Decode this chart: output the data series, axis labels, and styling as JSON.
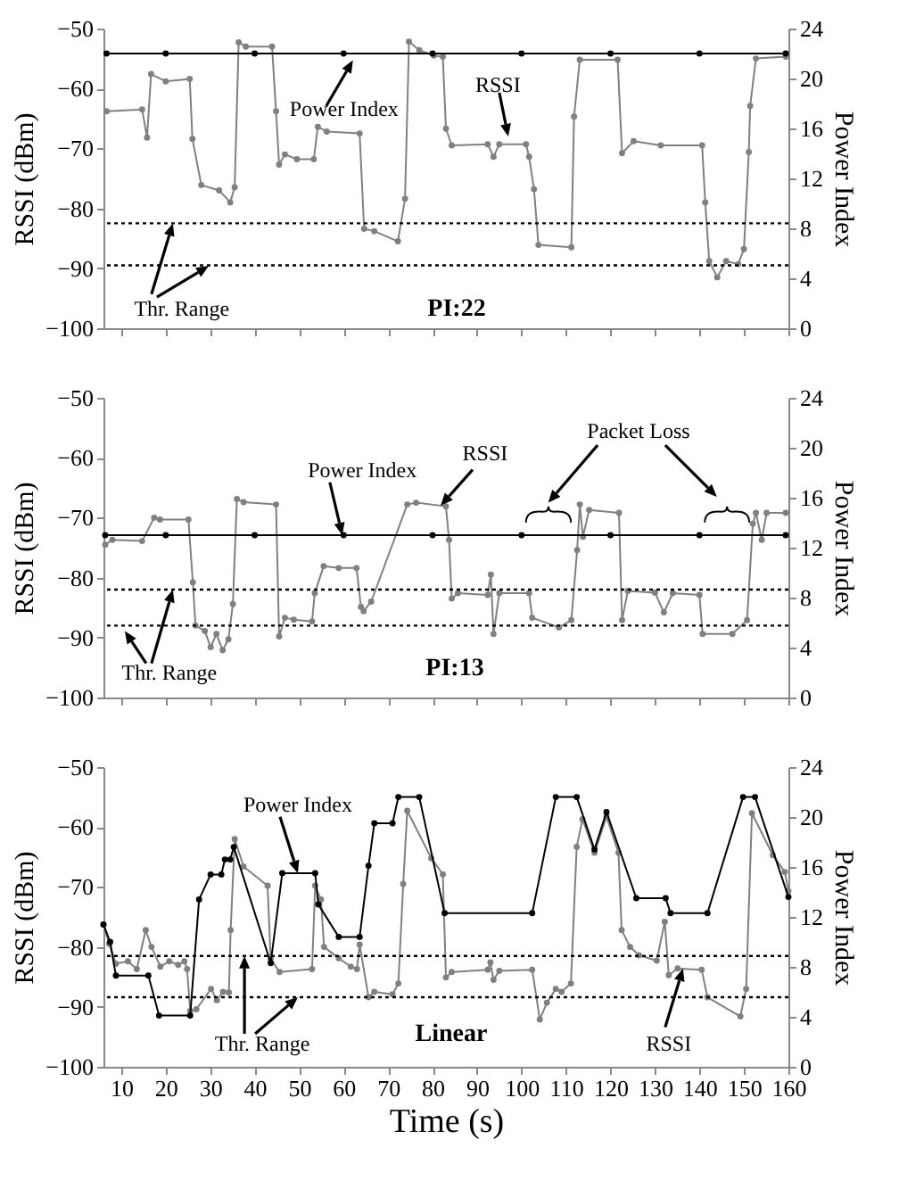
{
  "chart_data": [
    {
      "type": "line",
      "ylabel": "RSSI (dBm)",
      "y2label": "Power Index",
      "xlim": [
        6,
        160
      ],
      "xticks": [
        10,
        20,
        30,
        40,
        50,
        60,
        70,
        80,
        90,
        100,
        110,
        120,
        130,
        140,
        150,
        160
      ],
      "ylim": [
        -100,
        -50
      ],
      "yticks": [
        -100,
        -90,
        -80,
        -70,
        -60,
        -50
      ],
      "y2lim": [
        0,
        24
      ],
      "y2ticks": [
        0,
        4,
        8,
        12,
        16,
        20,
        24
      ],
      "tick_labels": "y",
      "marker": "circle",
      "line_style": "solid",
      "series": [
        {
          "name": null,
          "color": "#808080",
          "x": [
            6.7,
            14.7,
            15.8,
            16.7,
            20,
            25.4,
            26,
            28,
            32,
            34.5,
            35.5,
            36.4,
            38,
            43.9,
            44.8,
            45.5,
            46.8,
            49.5,
            53.3,
            54.2,
            56.2,
            63.6,
            64.6,
            66.9,
            72.2,
            73.8,
            74.7,
            77,
            80.3,
            82.3,
            83,
            84.3,
            92.4,
            93.7,
            95,
            101,
            101.7,
            102.8,
            103.8,
            111.2,
            111.8,
            113.1,
            121.6,
            122.6,
            125.2,
            131.3,
            140.6,
            141.3,
            142.2,
            144,
            146,
            148.7,
            150,
            151.1,
            151.4,
            152.7,
            159.4
          ],
          "values": [
            -63.8,
            -63.5,
            -68.2,
            -57.6,
            -58.8,
            -58.4,
            -68.4,
            -76.1,
            -77,
            -79,
            -76.5,
            -52.3,
            -53,
            -53,
            -63.8,
            -72.7,
            -71,
            -71.8,
            -71.8,
            -66.4,
            -67.2,
            -67.5,
            -83.4,
            -83.8,
            -85.5,
            -78.4,
            -52.2,
            -53.6,
            -54.5,
            -54.7,
            -66.7,
            -69.5,
            -69.3,
            -71.4,
            -69.3,
            -69.3,
            -71.4,
            -76.8,
            -86.1,
            -86.5,
            -64.7,
            -55.2,
            -55.2,
            -70.8,
            -68.8,
            -69.5,
            -69.5,
            -79,
            -88.8,
            -91.5,
            -88.8,
            -89.3,
            -86.8,
            -70.6,
            -62.9,
            -55,
            -54.7
          ]
        },
        {
          "name": null,
          "color": "#000000",
          "axis": "y2",
          "x": [
            6.7,
            20,
            40,
            60,
            80,
            100,
            120,
            140,
            159.4
          ],
          "values": [
            22,
            22,
            22,
            22,
            22,
            22,
            22,
            22,
            22
          ]
        }
      ],
      "ref_lines": [
        {
          "axis": "y",
          "value": -82.5,
          "color": "#000000",
          "line_style": "dotted"
        },
        {
          "axis": "y",
          "value": -89.5,
          "color": "#000000",
          "line_style": "dotted"
        }
      ],
      "annotations": [
        {
          "text": "Power Index",
          "x": 62.1,
          "y": -55.3
        },
        {
          "text": "RSSI",
          "x": 97,
          "y": -68
        },
        {
          "text": "Thr. Range",
          "x": 21.6,
          "y": -82.5
        },
        "PI:22"
      ]
    },
    {
      "type": "line",
      "ylabel": "RSSI (dBm)",
      "y2label": "Power Index",
      "xlim": [
        6,
        160
      ],
      "xticks": [
        10,
        20,
        30,
        40,
        50,
        60,
        70,
        80,
        90,
        100,
        110,
        120,
        130,
        140,
        150,
        160
      ],
      "ylim": [
        -100,
        -50
      ],
      "yticks": [
        -100,
        -90,
        -80,
        -70,
        -60,
        -50
      ],
      "y2lim": [
        0,
        24
      ],
      "y2ticks": [
        0,
        4,
        8,
        12,
        16,
        20,
        24
      ],
      "tick_labels": "y",
      "marker": "circle",
      "line_style": "solid",
      "series": [
        {
          "name": null,
          "color": "#808080",
          "x": [
            6.4,
            8,
            14.7,
            17.4,
            18.7,
            25.1,
            26.1,
            26.7,
            28.8,
            30.1,
            31.4,
            32.8,
            34.1,
            35.1,
            36,
            37.5,
            44.8,
            45.5,
            46.8,
            48.8,
            52.9,
            53.5,
            55.5,
            58.9,
            62.9,
            63.9,
            64.5,
            66.2,
            74.3,
            76.3,
            83,
            83.7,
            84.3,
            85.7,
            92.4,
            93.1,
            93.7,
            95,
            101.7,
            102.4,
            108.4,
            111.2,
            112.5,
            113.1,
            113.8,
            115.2,
            121.9,
            122.6,
            123.9,
            130,
            132,
            134,
            140,
            140.7,
            147.4,
            150.7,
            152,
            152.7,
            154,
            155.1,
            159.4
          ],
          "values": [
            -74.5,
            -73.7,
            -73.9,
            -70,
            -70.3,
            -70.3,
            -80.8,
            -88,
            -88.9,
            -91.6,
            -89.4,
            -92.1,
            -90.3,
            -84.4,
            -66.9,
            -67.4,
            -67.8,
            -89.8,
            -86.7,
            -87,
            -87.3,
            -82.6,
            -78.1,
            -78.4,
            -78.4,
            -84.9,
            -85.6,
            -84,
            -67.8,
            -67.5,
            -68.1,
            -73.7,
            -83.5,
            -82.6,
            -82.9,
            -79.5,
            -89.4,
            -82.6,
            -82.6,
            -86.7,
            -88.3,
            -87.1,
            -75.4,
            -67.8,
            -73.2,
            -68.7,
            -69.2,
            -87.1,
            -82.2,
            -82.5,
            -85.8,
            -82.6,
            -82.9,
            -89.4,
            -89.4,
            -87.1,
            -71,
            -69.2,
            -73.7,
            -69.2,
            -69.2
          ]
        },
        {
          "name": null,
          "color": "#000000",
          "axis": "y2",
          "x": [
            6.4,
            20,
            40,
            60,
            80,
            100,
            120,
            140,
            159.4
          ],
          "values": [
            13,
            13,
            13,
            13,
            13,
            13,
            13,
            13,
            13
          ]
        }
      ],
      "ref_lines": [
        {
          "axis": "y",
          "value": -82,
          "color": "#000000",
          "line_style": "dotted"
        },
        {
          "axis": "y",
          "value": -88,
          "color": "#000000",
          "line_style": "dotted"
        }
      ],
      "annotations": [
        {
          "text": "Power Index",
          "x": 59.7,
          "y": -72.9
        },
        {
          "text": "RSSI",
          "x": 81.8,
          "y": -68
        },
        "Packet Loss",
        {
          "text": "Thr. Range",
          "x": 21.6,
          "y": -82
        },
        "PI:13"
      ]
    },
    {
      "type": "line",
      "xlabel": "Time (s)",
      "ylabel": "RSSI (dBm)",
      "y2label": "Power Index",
      "xlim": [
        6,
        160
      ],
      "xticks": [
        10,
        20,
        30,
        40,
        50,
        60,
        70,
        80,
        90,
        100,
        110,
        120,
        130,
        140,
        150,
        160
      ],
      "ylim": [
        -100,
        -50
      ],
      "yticks": [
        -100,
        -90,
        -80,
        -70,
        -60,
        -50
      ],
      "y2lim": [
        0,
        24
      ],
      "y2ticks": [
        0,
        4,
        8,
        12,
        16,
        20,
        24
      ],
      "marker": "circle",
      "line_style": "solid",
      "series": [
        {
          "name": null,
          "color": "#808080",
          "x": [
            6,
            7.3,
            8.8,
            11.5,
            13.5,
            15.5,
            16.8,
            18.8,
            20.8,
            22.8,
            24.2,
            24.8,
            25.5,
            26.9,
            30.2,
            31.5,
            32.9,
            34.2,
            34.6,
            35.5,
            37.5,
            42.9,
            43.6,
            45.6,
            52.9,
            53.6,
            54.9,
            55.6,
            58.9,
            61.6,
            63,
            63.6,
            65.6,
            66.9,
            71,
            72.3,
            73.4,
            74.3,
            79.7,
            82.3,
            83,
            84.3,
            92.4,
            93,
            93.7,
            95,
            102.4,
            104.1,
            105.7,
            107.7,
            109,
            111.1,
            112.4,
            113.7,
            116.4,
            119.1,
            121.8,
            122.5,
            124.4,
            126.4,
            130.4,
            132.2,
            133.1,
            135.1,
            140.5,
            141.8,
            149.2,
            150.5,
            151.8,
            156.5,
            159.2,
            160
          ],
          "values": [
            -76.3,
            -79.5,
            -82.8,
            -82.4,
            -83.7,
            -77.2,
            -80,
            -83.3,
            -82.4,
            -83,
            -82.4,
            -83.7,
            -90.7,
            -90.4,
            -87,
            -88.9,
            -87.5,
            -87.6,
            -77.2,
            -62,
            -66.6,
            -69.8,
            -82,
            -84.2,
            -83.7,
            -69.8,
            -72.1,
            -80,
            -81.9,
            -83.3,
            -83.7,
            -79.6,
            -88.4,
            -87.5,
            -87.9,
            -86.1,
            -69.5,
            -57.3,
            -65.2,
            -67.9,
            -85.1,
            -84.2,
            -83.8,
            -82.6,
            -85.5,
            -84,
            -83.8,
            -92.1,
            -89.3,
            -87,
            -87.5,
            -86.1,
            -63.3,
            -58.7,
            -64.3,
            -58.3,
            -64.3,
            -77.2,
            -80,
            -81.4,
            -82.3,
            -75.8,
            -84.7,
            -83.6,
            -83.8,
            -88.4,
            -91.6,
            -87,
            -57.7,
            -64.7,
            -67.5,
            -70.7
          ]
        },
        {
          "name": null,
          "color": "#000000",
          "axis": "y2",
          "x": [
            6,
            7.5,
            8.8,
            16.1,
            18.5,
            25.5,
            27.5,
            30.1,
            32.5,
            33.3,
            34.5,
            35.3,
            43.6,
            46.2,
            53.6,
            54.3,
            58.9,
            63.6,
            65.6,
            66.9,
            71,
            72.3,
            77,
            82.7,
            102.4,
            107.7,
            112.4,
            116.4,
            119.1,
            125.8,
            132.4,
            133.5,
            141.8,
            149.8,
            152.5,
            160
          ],
          "values": [
            11.4,
            10,
            7.3,
            7.3,
            4.1,
            4.1,
            13.4,
            15.4,
            15.4,
            16.6,
            16.6,
            17.6,
            8.3,
            15.5,
            15.5,
            13,
            10.4,
            10.4,
            16.1,
            19.5,
            19.5,
            21.6,
            21.6,
            12.3,
            12.3,
            21.6,
            21.6,
            17.4,
            20.4,
            13.5,
            13.5,
            12.3,
            12.3,
            21.6,
            21.6,
            13.6
          ]
        }
      ],
      "ref_lines": [
        {
          "axis": "y",
          "value": -81.5,
          "color": "#000000",
          "line_style": "dotted"
        },
        {
          "axis": "y",
          "value": -88.4,
          "color": "#000000",
          "line_style": "dotted"
        }
      ],
      "annotations": [
        {
          "text": "Power Index",
          "x": 49.7,
          "y": -67.7
        },
        {
          "text": "Thr. Range",
          "x": 37.7,
          "y": -81.5
        },
        {
          "text": "RSSI",
          "x": 136.3,
          "y": -83.6
        },
        "Linear"
      ]
    }
  ]
}
